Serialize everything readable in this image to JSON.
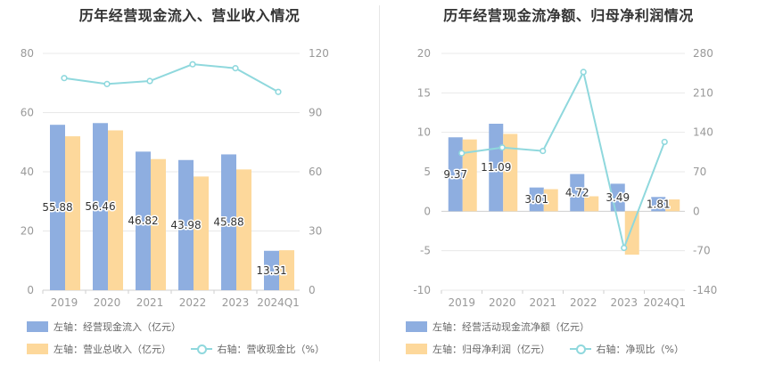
{
  "colors": {
    "bar1": "#8eaee0",
    "bar2": "#fdd89b",
    "line": "#8fd8dd",
    "grid": "#e8e8e8",
    "axis_text": "#999999",
    "label_text": "#333333"
  },
  "chart_data": [
    {
      "type": "bar",
      "title": "历年经营现金流入、营业收入情况",
      "categories": [
        "2019",
        "2020",
        "2021",
        "2022",
        "2023",
        "2024Q1"
      ],
      "left_axis": {
        "ylim": [
          0,
          80
        ],
        "ticks": [
          "0",
          "20",
          "40",
          "60",
          "80"
        ]
      },
      "right_axis": {
        "ylim": [
          0,
          120
        ],
        "ticks": [
          "0",
          "30",
          "60",
          "90",
          "120"
        ]
      },
      "series": [
        {
          "name": "左轴：经营现金流入（亿元）",
          "kind": "bar",
          "axis": "left",
          "values": [
            55.88,
            56.46,
            46.82,
            43.98,
            45.88,
            13.31
          ],
          "labels": [
            "55.88",
            "56.46",
            "46.82",
            "43.98",
            "45.88",
            "13.31"
          ]
        },
        {
          "name": "左轴：营业总收入（亿元）",
          "kind": "bar",
          "axis": "left",
          "values": [
            52,
            54,
            44.3,
            38.4,
            40.8,
            13.5
          ]
        },
        {
          "name": "右轴：营收现金比（%）",
          "kind": "line",
          "axis": "right",
          "values": [
            107.5,
            104.5,
            106,
            114.5,
            112.5,
            100.5
          ]
        }
      ],
      "legend": [
        "左轴：经营现金流入（亿元）",
        "左轴：营业总收入（亿元）",
        "右轴：营收现金比（%）"
      ],
      "legend_position": "bottom"
    },
    {
      "type": "bar",
      "title": "历年经营现金流净额、归母净利润情况",
      "categories": [
        "2019",
        "2020",
        "2021",
        "2022",
        "2023",
        "2024Q1"
      ],
      "left_axis": {
        "ylim": [
          -10,
          20
        ],
        "ticks": [
          "-10",
          "-5",
          "0",
          "5",
          "10",
          "15",
          "20"
        ]
      },
      "right_axis": {
        "ylim": [
          -140,
          280
        ],
        "ticks": [
          "-140",
          "-70",
          "0",
          "70",
          "140",
          "210",
          "280"
        ]
      },
      "series": [
        {
          "name": "左轴：经营活动现金流净额（亿元）",
          "kind": "bar",
          "axis": "left",
          "values": [
            9.37,
            11.09,
            3.01,
            4.72,
            3.49,
            1.81
          ],
          "labels": [
            "9.37",
            "11.09",
            "3.01",
            "4.72",
            "3.49",
            "1.81"
          ]
        },
        {
          "name": "左轴：归母净利润（亿元）",
          "kind": "bar",
          "axis": "left",
          "values": [
            9.1,
            9.8,
            2.8,
            1.9,
            -5.5,
            1.5
          ]
        },
        {
          "name": "右轴：净现比（%）",
          "kind": "line",
          "axis": "right",
          "values": [
            103,
            113,
            107,
            247,
            -65,
            123
          ]
        }
      ],
      "legend": [
        "左轴：经营活动现金流净额（亿元）",
        "左轴：归母净利润（亿元）",
        "右轴：净现比（%）"
      ],
      "legend_position": "bottom"
    }
  ]
}
